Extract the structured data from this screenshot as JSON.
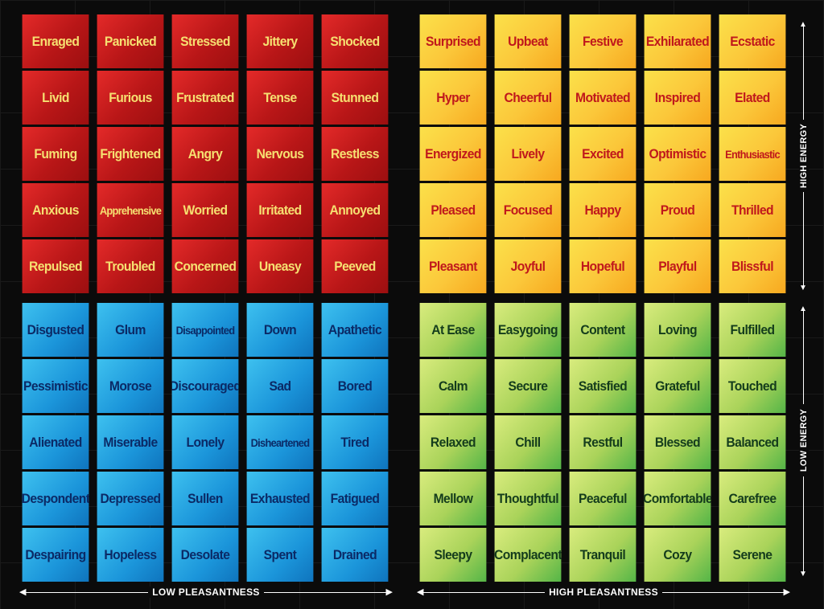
{
  "quadrants": {
    "red": [
      "Enraged",
      "Panicked",
      "Stressed",
      "Jittery",
      "Shocked",
      "Livid",
      "Furious",
      "Frustrated",
      "Tense",
      "Stunned",
      "Fuming",
      "Frightened",
      "Angry",
      "Nervous",
      "Restless",
      "Anxious",
      "Apprehensive",
      "Worried",
      "Irritated",
      "Annoyed",
      "Repulsed",
      "Troubled",
      "Concerned",
      "Uneasy",
      "Peeved"
    ],
    "yellow": [
      "Surprised",
      "Upbeat",
      "Festive",
      "Exhilarated",
      "Ecstatic",
      "Hyper",
      "Cheerful",
      "Motivated",
      "Inspired",
      "Elated",
      "Energized",
      "Lively",
      "Excited",
      "Optimistic",
      "Enthusiastic",
      "Pleased",
      "Focused",
      "Happy",
      "Proud",
      "Thrilled",
      "Pleasant",
      "Joyful",
      "Hopeful",
      "Playful",
      "Blissful"
    ],
    "blue": [
      "Disgusted",
      "Glum",
      "Disappointed",
      "Down",
      "Apathetic",
      "Pessimistic",
      "Morose",
      "Discouraged",
      "Sad",
      "Bored",
      "Alienated",
      "Miserable",
      "Lonely",
      "Disheartened",
      "Tired",
      "Despondent",
      "Depressed",
      "Sullen",
      "Exhausted",
      "Fatigued",
      "Despairing",
      "Hopeless",
      "Desolate",
      "Spent",
      "Drained"
    ],
    "green": [
      "At Ease",
      "Easygoing",
      "Content",
      "Loving",
      "Fulfilled",
      "Calm",
      "Secure",
      "Satisfied",
      "Grateful",
      "Touched",
      "Relaxed",
      "Chill",
      "Restful",
      "Blessed",
      "Balanced",
      "Mellow",
      "Thoughtful",
      "Peaceful",
      "Comfortable",
      "Carefree",
      "Sleepy",
      "Complacent",
      "Tranquil",
      "Cozy",
      "Serene"
    ]
  },
  "axes": {
    "x_low": "LOW PLEASANTNESS",
    "x_high": "HIGH PLEASANTNESS",
    "y_high": "HIGH ENERGY",
    "y_low": "LOW ENERGY"
  },
  "colors": {
    "red_quadrant": "#c81e1e",
    "yellow_quadrant": "#fbcb3c",
    "blue_quadrant": "#1f9ad9",
    "green_quadrant": "#9dd05a",
    "background": "#0b0b0b"
  }
}
